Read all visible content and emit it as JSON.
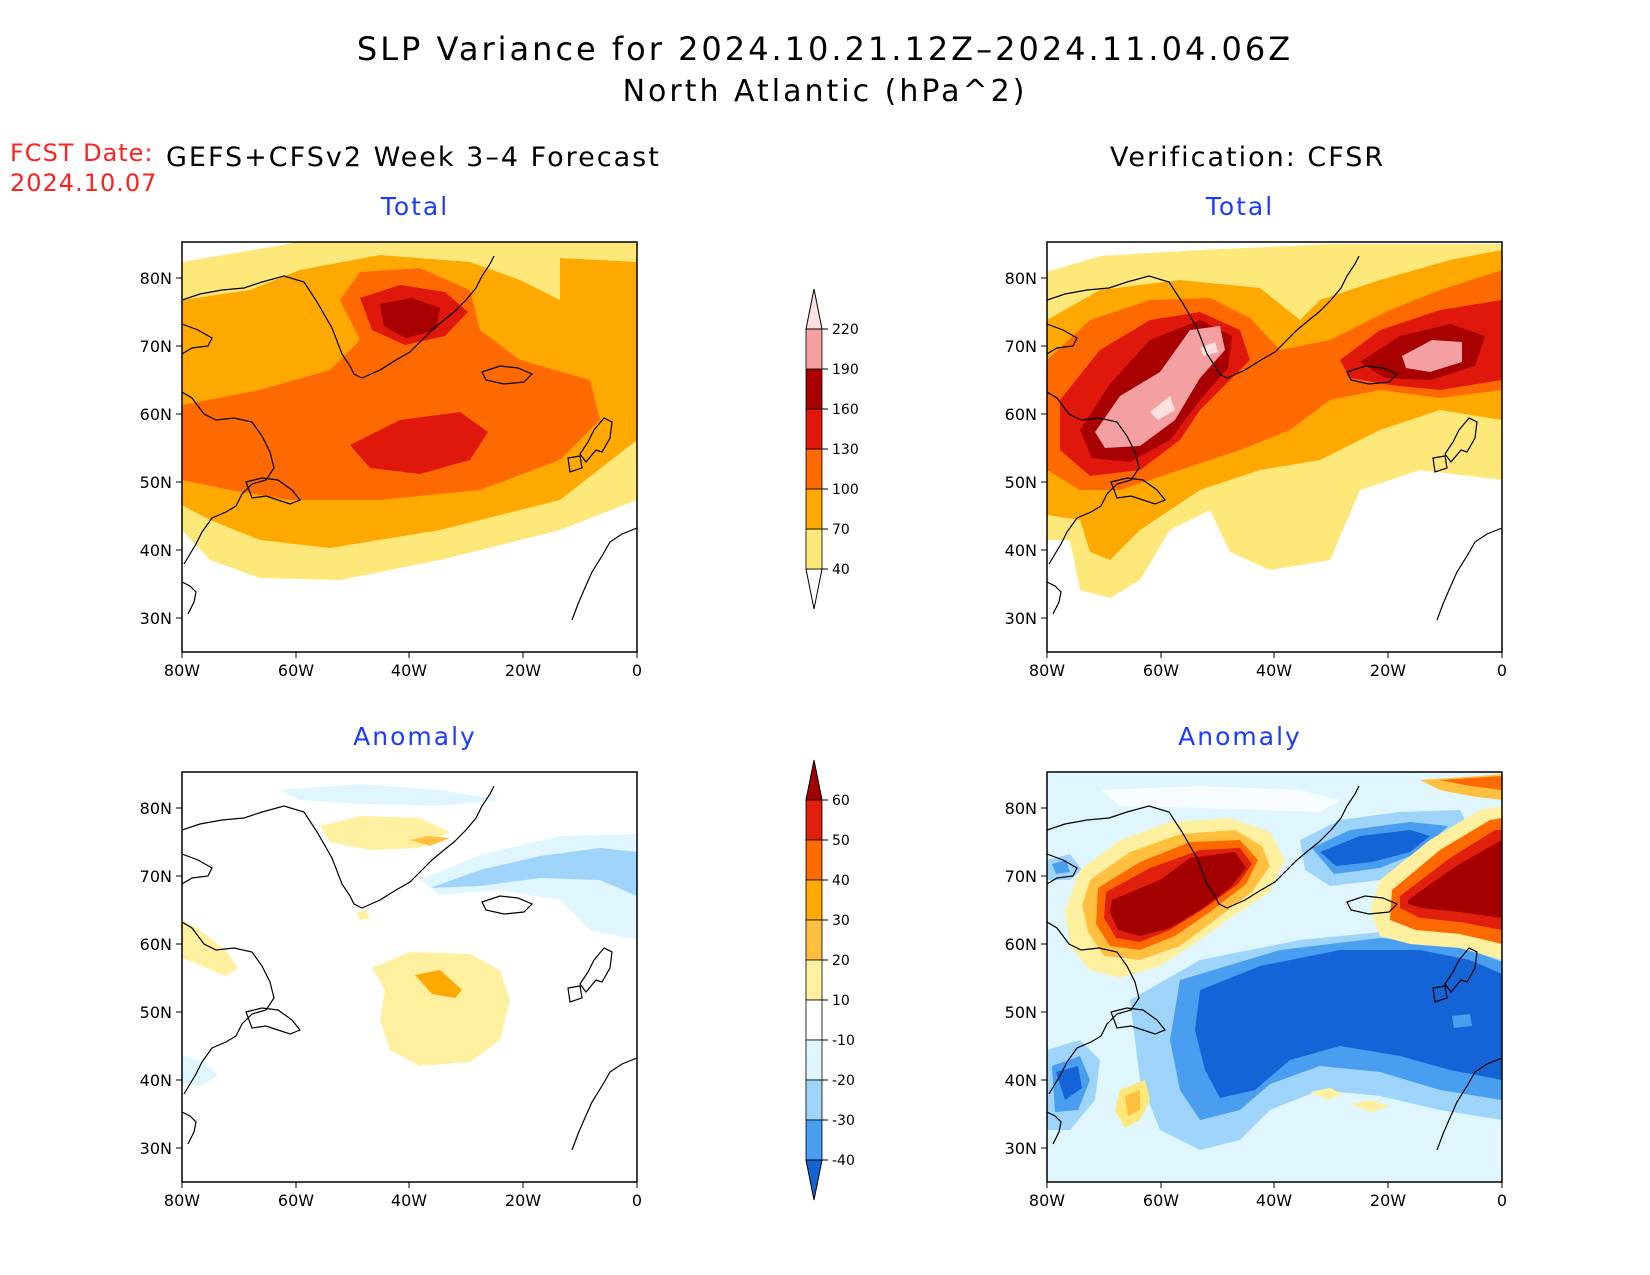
{
  "title": {
    "line1": "SLP Variance for 2024.10.21.12Z–2024.11.04.06Z",
    "line2": "North Atlantic (hPa^2)"
  },
  "fcst_date": {
    "label": "FCST Date:",
    "value": "2024.10.07"
  },
  "columns": {
    "left": "GEFS+CFSv2 Week 3–4 Forecast",
    "right": "Verification: CFSR"
  },
  "panels": {
    "top_left": "Total",
    "top_right": "Total",
    "bottom_left": "Anomaly",
    "bottom_right": "Anomaly"
  },
  "axes": {
    "lat_labels": [
      "80N",
      "70N",
      "60N",
      "50N",
      "40N",
      "30N"
    ],
    "lon_labels": [
      "80W",
      "60W",
      "40W",
      "20W",
      "0"
    ]
  },
  "colorbars": {
    "total": {
      "levels": [
        "40",
        "70",
        "100",
        "130",
        "160",
        "190",
        "220"
      ],
      "colors": [
        "#ffe87a",
        "#ffa800",
        "#ff6a00",
        "#e0180c",
        "#a80000",
        "#f4a0a0",
        "#ffe0e0"
      ]
    },
    "anomaly": {
      "levels": [
        "60",
        "50",
        "40",
        "30",
        "20",
        "10",
        "-10",
        "-20",
        "-30",
        "-40"
      ],
      "colors": [
        "#a50000",
        "#e0200c",
        "#ff6a00",
        "#ffa800",
        "#ffc040",
        "#fff0a0",
        "#ffffff",
        "#dff6ff",
        "#9ed4fa",
        "#4a9ef0",
        "#1464d8"
      ]
    }
  },
  "palette": {
    "c40": "#ffe87a",
    "c70": "#ffa800",
    "c100": "#ff6a00",
    "c130": "#e0180c",
    "c160": "#a80000",
    "c190": "#f4a0a0",
    "c220": "#ffe0e0",
    "a10": "#fff0a0",
    "a20": "#ffc040",
    "a30": "#ffa800",
    "a40": "#ff6a00",
    "a50": "#e0200c",
    "a60": "#a50000",
    "n10": "#dff6ff",
    "n20": "#9ed4fa",
    "n30": "#4a9ef0",
    "n40": "#1464d8"
  }
}
